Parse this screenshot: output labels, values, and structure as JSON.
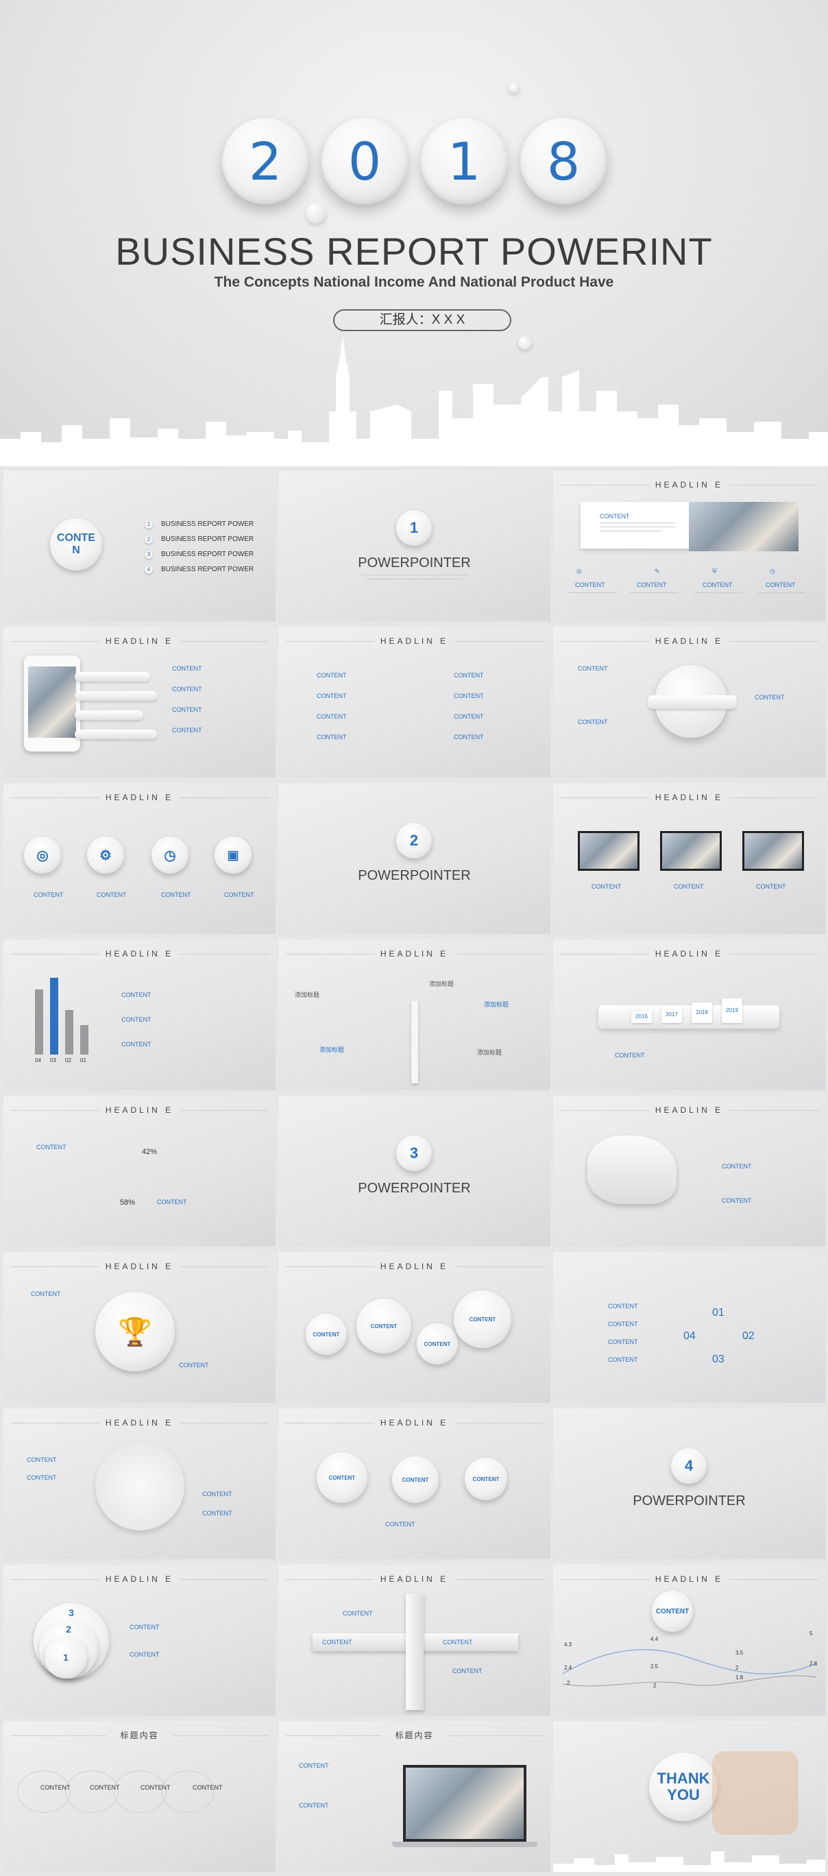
{
  "hero": {
    "digits": [
      "2",
      "0",
      "1",
      "8"
    ],
    "title": "BUSINESS REPORT POWERINT",
    "subtitle": "The Concepts National Income And National Product Have",
    "reporter": "汇报人：X X X"
  },
  "labels": {
    "headline": "HEADLIN E",
    "content": "CONTENT",
    "powerpointer": "POWERPOINTER",
    "contents_badge": "CONTE N",
    "title_cn": "标题内容",
    "add_title": "添加标题",
    "thank_you": "THANK YOU"
  },
  "agenda": [
    "BUSINESS REPORT POWER",
    "BUSINESS REPORT POWER",
    "BUSINESS REPORT POWER",
    "BUSINESS REPORT POWER"
  ],
  "section_numbers": [
    "1",
    "2",
    "3",
    "4"
  ],
  "years": [
    "2016",
    "2017",
    "2018",
    "2019"
  ],
  "bar_labels": [
    "04",
    "03",
    "02",
    "01"
  ],
  "pct": [
    "42%",
    "58%"
  ],
  "petals": [
    "01",
    "02",
    "03",
    "04"
  ],
  "stack": [
    "3",
    "2",
    "1"
  ],
  "line_points": [
    "4.3",
    "4.4",
    "3.5",
    "5",
    "2.4",
    "2.5",
    "2",
    "2.8",
    "2",
    "2",
    "1.8"
  ],
  "chart_data": {
    "type": "bar",
    "categories": [
      "04",
      "03",
      "02",
      "01"
    ],
    "values": [
      85,
      100,
      58,
      38
    ],
    "highlight": "03",
    "colors": {
      "base": "#9a9a9d",
      "accent": "#2b72c0"
    }
  },
  "colors": {
    "accent": "#2b72c0",
    "bg": "#e6e6e7"
  }
}
